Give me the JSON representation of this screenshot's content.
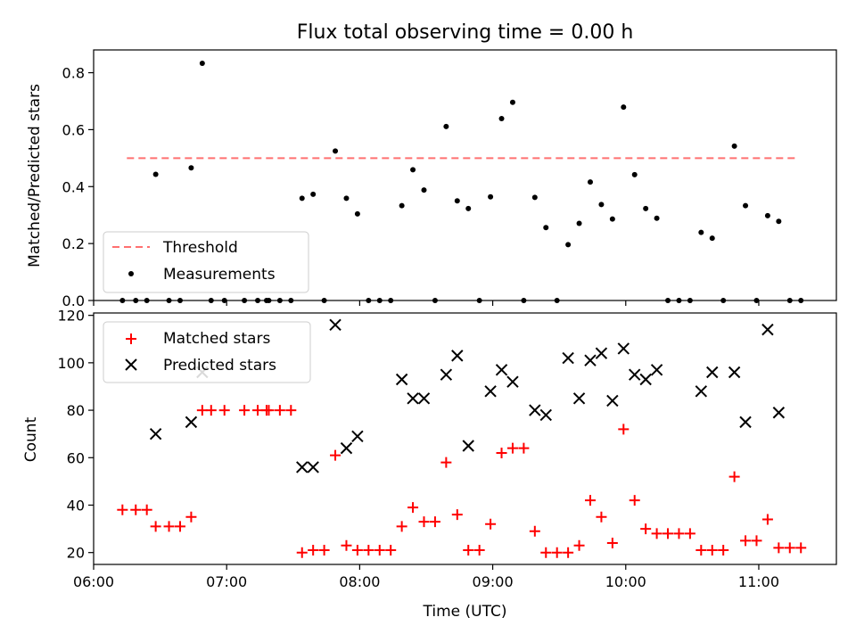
{
  "chart_data": [
    {
      "type": "scatter",
      "title": "Flux total observing time = 0.00 h",
      "xlabel": "",
      "ylabel": "Matched/Predicted stars",
      "xlim": [
        "06:00",
        "11:35"
      ],
      "ylim": [
        0,
        0.88
      ],
      "yticks": [
        0.0,
        0.2,
        0.4,
        0.6,
        0.8
      ],
      "yticklabels": [
        "0.0",
        "0.2",
        "0.4",
        "0.6",
        "0.8"
      ],
      "legend": "lower-left",
      "threshold": {
        "name": "Threshold",
        "value": 0.5,
        "x_start": "06:15",
        "x_end": "11:17",
        "color": "#ff7070",
        "style": "dashed"
      },
      "series": [
        {
          "name": "Measurements",
          "marker": "dot",
          "color": "#000000",
          "points": [
            [
              "06:13",
              0.0
            ],
            [
              "06:19",
              0.0
            ],
            [
              "06:24",
              0.0
            ],
            [
              "06:28",
              0.443
            ],
            [
              "06:34",
              0.0
            ],
            [
              "06:39",
              0.0
            ],
            [
              "06:44",
              0.466
            ],
            [
              "06:49",
              0.833
            ],
            [
              "06:53",
              0.0
            ],
            [
              "06:59",
              0.0
            ],
            [
              "07:08",
              0.0
            ],
            [
              "07:14",
              0.0
            ],
            [
              "07:18",
              0.0
            ],
            [
              "07:19",
              0.0
            ],
            [
              "07:24",
              0.0
            ],
            [
              "07:29",
              0.0
            ],
            [
              "07:34",
              0.359
            ],
            [
              "07:39",
              0.373
            ],
            [
              "07:44",
              0.0
            ],
            [
              "07:49",
              0.525
            ],
            [
              "07:54",
              0.359
            ],
            [
              "07:59",
              0.304
            ],
            [
              "08:04",
              0.0
            ],
            [
              "08:09",
              0.0
            ],
            [
              "08:14",
              0.0
            ],
            [
              "08:19",
              0.333
            ],
            [
              "08:24",
              0.459
            ],
            [
              "08:29",
              0.388
            ],
            [
              "08:34",
              0.0
            ],
            [
              "08:39",
              0.611
            ],
            [
              "08:44",
              0.35
            ],
            [
              "08:49",
              0.323
            ],
            [
              "08:54",
              0.0
            ],
            [
              "08:59",
              0.364
            ],
            [
              "09:04",
              0.639
            ],
            [
              "09:09",
              0.696
            ],
            [
              "09:14",
              0.0
            ],
            [
              "09:19",
              0.362
            ],
            [
              "09:24",
              0.256
            ],
            [
              "09:29",
              0.0
            ],
            [
              "09:34",
              0.196
            ],
            [
              "09:39",
              0.271
            ],
            [
              "09:44",
              0.416
            ],
            [
              "09:49",
              0.337
            ],
            [
              "09:54",
              0.286
            ],
            [
              "09:59",
              0.679
            ],
            [
              "10:04",
              0.442
            ],
            [
              "10:09",
              0.323
            ],
            [
              "10:14",
              0.289
            ],
            [
              "10:19",
              0.0
            ],
            [
              "10:24",
              0.0
            ],
            [
              "10:29",
              0.0
            ],
            [
              "10:34",
              0.239
            ],
            [
              "10:39",
              0.219
            ],
            [
              "10:44",
              0.0
            ],
            [
              "10:49",
              0.542
            ],
            [
              "10:54",
              0.333
            ],
            [
              "10:59",
              0.0
            ],
            [
              "11:04",
              0.298
            ],
            [
              "11:09",
              0.278
            ],
            [
              "11:14",
              0.0
            ],
            [
              "11:19",
              0.0
            ]
          ]
        }
      ]
    },
    {
      "type": "scatter",
      "title": "",
      "xlabel": "Time (UTC)",
      "ylabel": "Count",
      "xlim": [
        "06:00",
        "11:35"
      ],
      "ylim": [
        15,
        121
      ],
      "yticks": [
        20,
        40,
        60,
        80,
        100,
        120
      ],
      "yticklabels": [
        "20",
        "40",
        "60",
        "80",
        "100",
        "120"
      ],
      "xticks": [
        "06:00",
        "07:00",
        "08:00",
        "09:00",
        "10:00",
        "11:00"
      ],
      "xticklabels": [
        "06:00",
        "07:00",
        "08:00",
        "09:00",
        "10:00",
        "11:00"
      ],
      "legend": "upper-left",
      "series": [
        {
          "name": "Matched stars",
          "marker": "plus",
          "color": "#ff0000",
          "points": [
            [
              "06:13",
              38
            ],
            [
              "06:19",
              38
            ],
            [
              "06:24",
              38
            ],
            [
              "06:28",
              31
            ],
            [
              "06:34",
              31
            ],
            [
              "06:39",
              31
            ],
            [
              "06:44",
              35
            ],
            [
              "06:49",
              80
            ],
            [
              "06:53",
              80
            ],
            [
              "06:59",
              80
            ],
            [
              "07:08",
              80
            ],
            [
              "07:14",
              80
            ],
            [
              "07:18",
              80
            ],
            [
              "07:19",
              80
            ],
            [
              "07:24",
              80
            ],
            [
              "07:29",
              80
            ],
            [
              "07:34",
              20
            ],
            [
              "07:39",
              21
            ],
            [
              "07:44",
              21
            ],
            [
              "07:49",
              61
            ],
            [
              "07:54",
              23
            ],
            [
              "07:59",
              21
            ],
            [
              "08:04",
              21
            ],
            [
              "08:09",
              21
            ],
            [
              "08:14",
              21
            ],
            [
              "08:19",
              31
            ],
            [
              "08:24",
              39
            ],
            [
              "08:29",
              33
            ],
            [
              "08:34",
              33
            ],
            [
              "08:39",
              58
            ],
            [
              "08:44",
              36
            ],
            [
              "08:49",
              21
            ],
            [
              "08:54",
              21
            ],
            [
              "08:59",
              32
            ],
            [
              "09:04",
              62
            ],
            [
              "09:09",
              64
            ],
            [
              "09:14",
              64
            ],
            [
              "09:19",
              29
            ],
            [
              "09:24",
              20
            ],
            [
              "09:29",
              20
            ],
            [
              "09:34",
              20
            ],
            [
              "09:39",
              23
            ],
            [
              "09:44",
              42
            ],
            [
              "09:49",
              35
            ],
            [
              "09:54",
              24
            ],
            [
              "09:59",
              72
            ],
            [
              "10:04",
              42
            ],
            [
              "10:09",
              30
            ],
            [
              "10:14",
              28
            ],
            [
              "10:19",
              28
            ],
            [
              "10:24",
              28
            ],
            [
              "10:29",
              28
            ],
            [
              "10:34",
              21
            ],
            [
              "10:39",
              21
            ],
            [
              "10:44",
              21
            ],
            [
              "10:49",
              52
            ],
            [
              "10:54",
              25
            ],
            [
              "10:59",
              25
            ],
            [
              "11:04",
              34
            ],
            [
              "11:09",
              22
            ],
            [
              "11:14",
              22
            ],
            [
              "11:19",
              22
            ]
          ]
        },
        {
          "name": "Predicted stars",
          "marker": "x",
          "color": "#000000",
          "points": [
            [
              "06:28",
              70
            ],
            [
              "06:44",
              75
            ],
            [
              "06:49",
              96
            ],
            [
              "07:34",
              56
            ],
            [
              "07:39",
              56
            ],
            [
              "07:49",
              116
            ],
            [
              "07:54",
              64
            ],
            [
              "07:59",
              69
            ],
            [
              "08:19",
              93
            ],
            [
              "08:24",
              85
            ],
            [
              "08:29",
              85
            ],
            [
              "08:39",
              95
            ],
            [
              "08:44",
              103
            ],
            [
              "08:49",
              65
            ],
            [
              "08:59",
              88
            ],
            [
              "09:04",
              97
            ],
            [
              "09:09",
              92
            ],
            [
              "09:19",
              80
            ],
            [
              "09:24",
              78
            ],
            [
              "09:34",
              102
            ],
            [
              "09:39",
              85
            ],
            [
              "09:44",
              101
            ],
            [
              "09:49",
              104
            ],
            [
              "09:54",
              84
            ],
            [
              "09:59",
              106
            ],
            [
              "10:04",
              95
            ],
            [
              "10:09",
              93
            ],
            [
              "10:14",
              97
            ],
            [
              "10:34",
              88
            ],
            [
              "10:39",
              96
            ],
            [
              "10:49",
              96
            ],
            [
              "10:54",
              75
            ],
            [
              "11:04",
              114
            ],
            [
              "11:09",
              79
            ]
          ]
        }
      ]
    }
  ]
}
